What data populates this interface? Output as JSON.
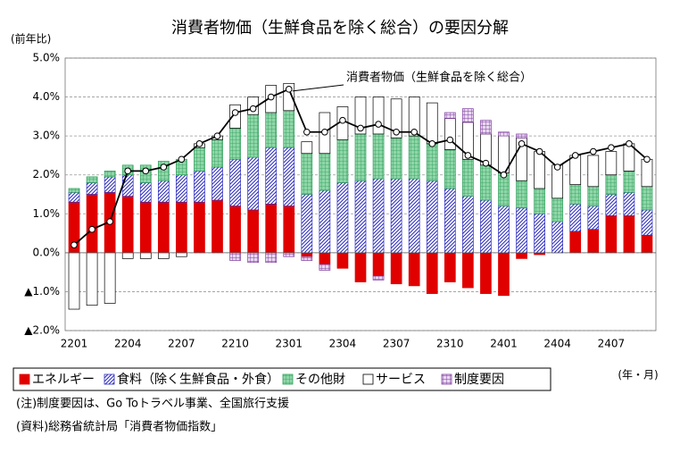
{
  "chart_data": {
    "type": "stacked-bar-line",
    "title": "消費者物価（生鮮食品を除く総合）の要因分解",
    "y_label": "(前年比)",
    "x_label": "(年・月)",
    "categories": [
      "2201",
      null,
      null,
      "2204",
      null,
      null,
      "2207",
      null,
      null,
      "2210",
      null,
      null,
      "2301",
      null,
      null,
      "2304",
      null,
      null,
      "2307",
      null,
      null,
      "2310",
      null,
      null,
      "2401",
      null,
      null,
      "2404",
      null,
      null,
      "2407",
      null,
      null
    ],
    "series": [
      {
        "name": "エネルギー",
        "color": "#e00000",
        "pattern": "solid",
        "values": [
          1.3,
          1.5,
          1.55,
          1.45,
          1.3,
          1.3,
          1.3,
          1.3,
          1.35,
          1.2,
          1.1,
          1.25,
          1.2,
          -0.1,
          -0.3,
          -0.4,
          -0.75,
          -0.6,
          -0.8,
          -0.85,
          -1.05,
          -0.75,
          -0.9,
          -1.05,
          -1.1,
          -0.15,
          -0.05,
          0,
          0.55,
          0.6,
          0.95,
          0.95,
          0.45
        ]
      },
      {
        "name": "食料（除く生鮮食品・外食）",
        "color": "#3030c0",
        "pattern": "hatch",
        "values": [
          0.25,
          0.3,
          0.4,
          0.55,
          0.5,
          0.55,
          0.7,
          0.8,
          0.85,
          1.2,
          1.35,
          1.45,
          1.5,
          1.5,
          1.6,
          1.8,
          1.85,
          1.9,
          1.9,
          1.9,
          1.85,
          1.65,
          1.45,
          1.35,
          1.2,
          1.15,
          1.0,
          0.8,
          0.7,
          0.6,
          0.55,
          0.6,
          0.65
        ]
      },
      {
        "name": "その他財",
        "color": "#2e9e5a",
        "pattern": "grid",
        "values": [
          0.1,
          0.15,
          0.15,
          0.25,
          0.45,
          0.5,
          0.4,
          0.6,
          0.7,
          0.8,
          1.1,
          0.9,
          0.95,
          1.05,
          0.95,
          1.1,
          1.2,
          1.15,
          1.05,
          1.1,
          0.95,
          1.0,
          0.95,
          0.9,
          0.85,
          0.7,
          0.65,
          0.6,
          0.5,
          0.5,
          0.5,
          0.55,
          0.6
        ]
      },
      {
        "name": "サービス",
        "color": "#ffffff",
        "pattern": "solid",
        "values": [
          -1.45,
          -1.35,
          -1.3,
          -0.15,
          -0.15,
          -0.15,
          -0.1,
          0.1,
          0.1,
          0.6,
          0.45,
          0.7,
          0.7,
          0.3,
          1.05,
          0.85,
          0.95,
          0.95,
          1.0,
          1.0,
          1.05,
          0.8,
          0.95,
          0.8,
          0.95,
          1.1,
          0.95,
          0.85,
          0.75,
          0.8,
          0.6,
          0.7,
          0.7
        ]
      },
      {
        "name": "制度要因",
        "color": "#8040a0",
        "pattern": "grid",
        "values": [
          0,
          0,
          0,
          0,
          0,
          0,
          0,
          0,
          0,
          -0.2,
          -0.25,
          -0.25,
          -0.1,
          -0.1,
          -0.15,
          0,
          0,
          -0.1,
          0,
          0,
          0,
          0.15,
          0.35,
          0.35,
          0.1,
          0.1,
          0,
          0,
          0,
          0,
          0,
          0,
          0
        ]
      }
    ],
    "line": {
      "name": "消費者物価（生鮮食品を除く総合）",
      "color": "#000000",
      "values": [
        0.2,
        0.6,
        0.8,
        2.1,
        2.1,
        2.2,
        2.4,
        2.8,
        3.0,
        3.6,
        3.7,
        4.0,
        4.2,
        3.1,
        3.1,
        3.4,
        3.2,
        3.3,
        3.1,
        3.1,
        2.8,
        2.9,
        2.5,
        2.3,
        2.0,
        2.8,
        2.6,
        2.2,
        2.5,
        2.6,
        2.7,
        2.8,
        2.4
      ]
    },
    "ylim": [
      -2,
      5
    ],
    "yticks": [
      {
        "value": -2,
        "label": "▲2.0%"
      },
      {
        "value": -1,
        "label": "▲1.0%"
      },
      {
        "value": 0,
        "label": "0.0%"
      },
      {
        "value": 1,
        "label": "1.0%"
      },
      {
        "value": 2,
        "label": "2.0%"
      },
      {
        "value": 3,
        "label": "3.0%"
      },
      {
        "value": 4,
        "label": "4.0%"
      },
      {
        "value": 5,
        "label": "5.0%"
      }
    ],
    "grid": true,
    "legend": "bottom"
  },
  "notes": [
    "(注)制度要因は、Go Toトラベル事業、全国旅行支援",
    "(資料)総務省統計局「消費者物価指数」"
  ]
}
